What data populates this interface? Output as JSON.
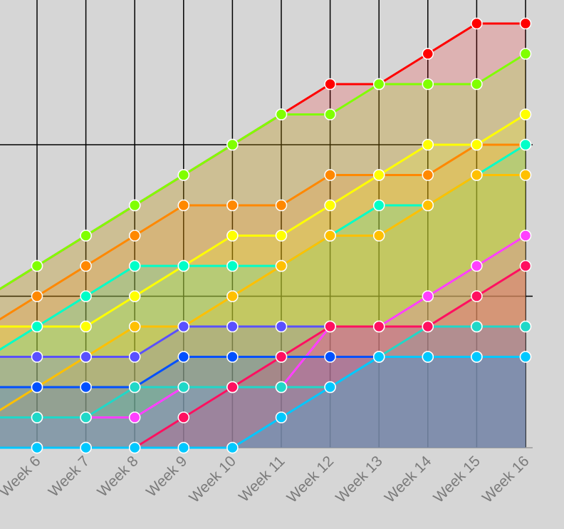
{
  "chart_data": {
    "type": "area",
    "stacked": false,
    "categories": [
      "Week 6",
      "Week 7",
      "Week 8",
      "Week 9",
      "Week 10",
      "Week 11",
      "Week 12",
      "Week 13",
      "Week 14",
      "Week 15",
      "Week 16"
    ],
    "y_range_visible": [
      0,
      14
    ],
    "grid": true,
    "legend": "none",
    "series": [
      {
        "color": "#ff0000",
        "values": [
          6,
          7,
          8,
          9,
          10,
          11,
          12,
          12,
          13,
          14,
          14
        ]
      },
      {
        "color": "#80ff00",
        "values": [
          6,
          7,
          8,
          9,
          10,
          11,
          11,
          12,
          12,
          12,
          13
        ]
      },
      {
        "color": "#ff8800",
        "values": [
          5,
          6,
          7,
          8,
          8,
          8,
          9,
          9,
          9,
          10,
          10
        ]
      },
      {
        "color": "#ffff00",
        "values": [
          4,
          4,
          5,
          6,
          7,
          7,
          8,
          9,
          10,
          10,
          11
        ]
      },
      {
        "color": "#00ffc8",
        "values": [
          4,
          5,
          6,
          6,
          6,
          6,
          7,
          8,
          8,
          9,
          10
        ]
      },
      {
        "color": "#ffc000",
        "values": [
          2,
          3,
          4,
          4,
          5,
          6,
          7,
          7,
          8,
          9,
          9
        ]
      },
      {
        "color": "#5a50ff",
        "values": [
          3,
          3,
          3,
          4,
          4,
          4,
          4,
          4,
          4,
          4,
          4
        ]
      },
      {
        "color": "#ff40ff",
        "values": [
          1,
          1,
          1,
          2,
          2,
          2,
          4,
          4,
          5,
          6,
          7
        ]
      },
      {
        "color": "#0050ff",
        "values": [
          2,
          2,
          2,
          3,
          3,
          3,
          3,
          3,
          3,
          3,
          3
        ]
      },
      {
        "color": "#20d8c8",
        "values": [
          1,
          1,
          2,
          2,
          2,
          2,
          2,
          3,
          4,
          4,
          4
        ]
      },
      {
        "color": "#ff1060",
        "values": [
          0,
          0,
          0,
          1,
          2,
          3,
          4,
          4,
          4,
          5,
          6
        ]
      },
      {
        "color": "#00c8ff",
        "values": [
          0,
          0,
          0,
          0,
          0,
          1,
          2,
          3,
          3,
          3,
          3
        ]
      }
    ]
  }
}
